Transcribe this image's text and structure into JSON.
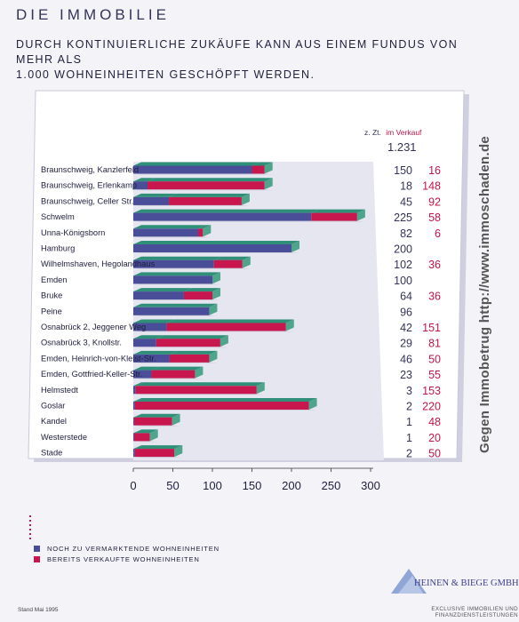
{
  "header": {
    "title": "DIE IMMOBILIE",
    "headline_line1": "DURCH KONTINUIERLICHE ZUKÄUFE KANN AUS EINEM FUNDUS VON MEHR ALS",
    "headline_line2": "1.000 WOHNEINHEITEN GESCHÖPFT WERDEN."
  },
  "chart_data": {
    "type": "bar",
    "stacked": true,
    "orientation": "horizontal",
    "categories": [
      "Braunschweig, Kanzlerfeld",
      "Braunschweig, Erlenkamp",
      "Braunschweig, Celler Str.",
      "Schwelm",
      "Unna-Königsborn",
      "Hamburg",
      "Wilhelmshaven, Hegolandhaus",
      "Emden",
      "Bruke",
      "Peine",
      "Osnabrück 2, Jeggener Weg",
      "Osnabrück 3, Knollstr.",
      "Emden, Heinrich-von-Kleist-Str.",
      "Emden, Gottfried-Keller-Str.",
      "Helmstedt",
      "Goslar",
      "Kandel",
      "Westerstede",
      "Stade"
    ],
    "series": [
      {
        "name": "NOCH ZU VERMARKTENDE WOHNEINHEITEN",
        "values": [
          150,
          18,
          45,
          225,
          82,
          200,
          102,
          100,
          64,
          96,
          42,
          29,
          46,
          23,
          3,
          2,
          1,
          1,
          2
        ]
      },
      {
        "name": "BEREITS VERKAUFTE WOHNEINHEITEN",
        "values": [
          16,
          148,
          92,
          58,
          6,
          0,
          36,
          0,
          36,
          0,
          151,
          81,
          50,
          55,
          153,
          220,
          48,
          20,
          50
        ]
      }
    ],
    "labels_blue": [
      "150",
      "18",
      "45",
      "225",
      "82",
      "200",
      "102",
      "100",
      "64",
      "96",
      "42",
      "29",
      "46",
      "23",
      "3",
      "2",
      "1",
      "1",
      "2"
    ],
    "labels_red": [
      "16",
      "148",
      "92",
      "58",
      "6",
      "",
      "36",
      "",
      "36",
      "",
      "151",
      "81",
      "50",
      "55",
      "153",
      "220",
      "48",
      "20",
      "50"
    ],
    "x_ticks": [
      "0",
      "50",
      "100",
      "150",
      "200",
      "250",
      "300"
    ],
    "xlim": [
      0,
      300
    ],
    "column_header_prefix": "z. Zt.",
    "column_header_highlight": "im Verkauf",
    "total": "1.231",
    "colors": {
      "blue": "#4a4d98",
      "red": "#c8164e",
      "top_face": "#2f8f78",
      "floor": "#d8d8e4"
    }
  },
  "legend": {
    "items": [
      {
        "label": "NOCH ZU VERMARKTENDE WOHNEINHEITEN",
        "color": "#4a4d98"
      },
      {
        "label": "BEREITS VERKAUFTE WOHNEINHEITEN",
        "color": "#c8164e"
      }
    ]
  },
  "footer": {
    "stand": "Stand Mai 1995",
    "company": "HEINEN & BIEGE GMBH",
    "tagline_line1": "EXCLUSIVE IMMOBILIEN UND",
    "tagline_line2": "FINANZDIENSTLEISTUNGEN"
  },
  "watermark": "Gegen Immobetrug http://www.immoschaden.de"
}
